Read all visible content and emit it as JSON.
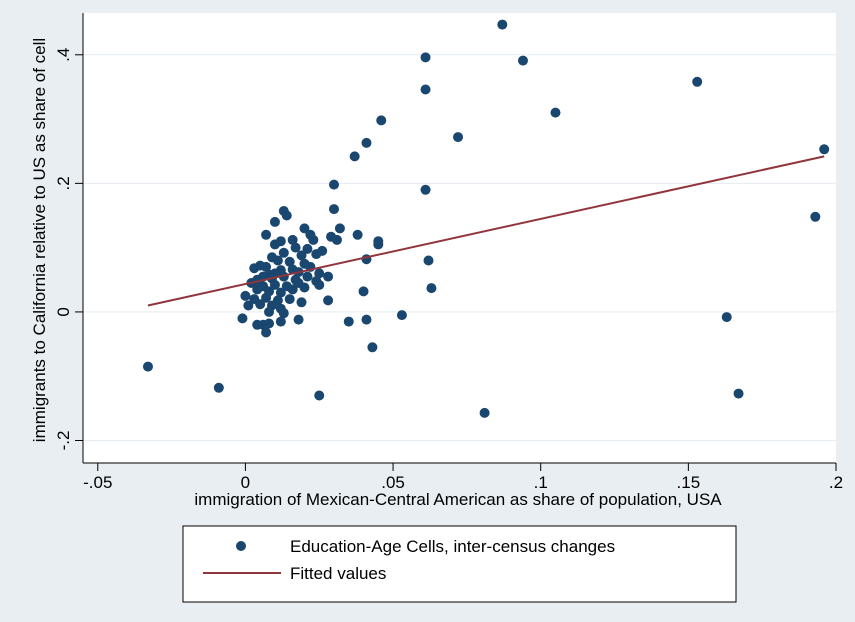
{
  "chart_data": {
    "type": "scatter",
    "title": "",
    "xlabel": "immigration of Mexican-Central American as share of population, USA",
    "ylabel": "immigrants to California relative to US as share of cell",
    "xlim": [
      -0.055,
      0.2
    ],
    "ylim": [
      -0.235,
      0.465
    ],
    "x_ticks": [
      {
        "value": -0.05,
        "label": "-.05"
      },
      {
        "value": 0,
        "label": "0"
      },
      {
        "value": 0.05,
        "label": ".05"
      },
      {
        "value": 0.1,
        "label": ".1"
      },
      {
        "value": 0.15,
        "label": ".15"
      },
      {
        "value": 0.2,
        "label": ".2"
      }
    ],
    "y_ticks": [
      {
        "value": -0.2,
        "label": "-.2"
      },
      {
        "value": 0,
        "label": "0"
      },
      {
        "value": 0.2,
        "label": ".2"
      },
      {
        "value": 0.4,
        "label": ".4"
      }
    ],
    "grid": true,
    "legend_position": "bottom",
    "colors": {
      "background": "#e9eef2",
      "plot_area": "#ffffff",
      "grid": "#e4ecf1",
      "points": "#1a476f",
      "fit_line": "#90353b"
    },
    "series": [
      {
        "name": "Education-Age Cells, inter-census changes",
        "kind": "scatter",
        "points": [
          [
            0.087,
            0.447
          ],
          [
            0.094,
            0.391
          ],
          [
            0.061,
            0.396
          ],
          [
            0.061,
            0.346
          ],
          [
            0.046,
            0.298
          ],
          [
            0.105,
            0.31
          ],
          [
            0.153,
            0.358
          ],
          [
            0.041,
            0.263
          ],
          [
            0.072,
            0.272
          ],
          [
            0.037,
            0.242
          ],
          [
            0.196,
            0.253
          ],
          [
            0.03,
            0.198
          ],
          [
            0.061,
            0.19
          ],
          [
            0.193,
            0.148
          ],
          [
            0.03,
            0.16
          ],
          [
            0.013,
            0.157
          ],
          [
            0.014,
            0.15
          ],
          [
            0.01,
            0.14
          ],
          [
            0.02,
            0.13
          ],
          [
            0.022,
            0.12
          ],
          [
            0.032,
            0.13
          ],
          [
            0.038,
            0.12
          ],
          [
            0.045,
            0.11
          ],
          [
            0.045,
            0.105
          ],
          [
            0.029,
            0.117
          ],
          [
            0.031,
            0.112
          ],
          [
            0.007,
            0.12
          ],
          [
            0.016,
            0.112
          ],
          [
            0.012,
            0.11
          ],
          [
            0.01,
            0.105
          ],
          [
            0.017,
            0.1
          ],
          [
            0.021,
            0.098
          ],
          [
            0.023,
            0.112
          ],
          [
            0.026,
            0.095
          ],
          [
            0.024,
            0.09
          ],
          [
            0.019,
            0.088
          ],
          [
            0.013,
            0.092
          ],
          [
            0.009,
            0.085
          ],
          [
            0.011,
            0.08
          ],
          [
            0.015,
            0.078
          ],
          [
            0.005,
            0.072
          ],
          [
            0.007,
            0.07
          ],
          [
            0.003,
            0.068
          ],
          [
            0.012,
            0.065
          ],
          [
            0.016,
            0.066
          ],
          [
            0.022,
            0.07
          ],
          [
            0.02,
            0.075
          ],
          [
            0.018,
            0.062
          ],
          [
            0.01,
            0.06
          ],
          [
            0.008,
            0.058
          ],
          [
            0.006,
            0.055
          ],
          [
            0.004,
            0.05
          ],
          [
            0.009,
            0.052
          ],
          [
            0.013,
            0.055
          ],
          [
            0.017,
            0.05
          ],
          [
            0.021,
            0.055
          ],
          [
            0.025,
            0.06
          ],
          [
            0.028,
            0.055
          ],
          [
            0.024,
            0.048
          ],
          [
            0.025,
            0.042
          ],
          [
            0.018,
            0.045
          ],
          [
            0.014,
            0.04
          ],
          [
            0.01,
            0.042
          ],
          [
            0.006,
            0.04
          ],
          [
            0.004,
            0.035
          ],
          [
            0.008,
            0.032
          ],
          [
            0.012,
            0.03
          ],
          [
            0.016,
            0.035
          ],
          [
            0.02,
            0.038
          ],
          [
            0.002,
            0.045
          ],
          [
            0.0,
            0.025
          ],
          [
            0.003,
            0.02
          ],
          [
            0.007,
            0.022
          ],
          [
            0.011,
            0.018
          ],
          [
            0.015,
            0.02
          ],
          [
            0.019,
            0.015
          ],
          [
            0.005,
            0.012
          ],
          [
            0.009,
            0.01
          ],
          [
            0.001,
            0.01
          ],
          [
            0.012,
            0.005
          ],
          [
            0.008,
            0.0
          ],
          [
            0.013,
            -0.002
          ],
          [
            0.018,
            -0.012
          ],
          [
            0.012,
            -0.015
          ],
          [
            0.008,
            -0.018
          ],
          [
            0.006,
            -0.02
          ],
          [
            0.004,
            -0.02
          ],
          [
            0.007,
            -0.032
          ],
          [
            -0.001,
            -0.01
          ],
          [
            0.028,
            0.018
          ],
          [
            0.04,
            0.032
          ],
          [
            0.035,
            -0.015
          ],
          [
            0.041,
            -0.012
          ],
          [
            0.041,
            0.082
          ],
          [
            0.053,
            -0.005
          ],
          [
            0.062,
            0.08
          ],
          [
            0.063,
            0.037
          ],
          [
            0.043,
            -0.055
          ],
          [
            0.025,
            -0.13
          ],
          [
            -0.033,
            -0.085
          ],
          [
            -0.009,
            -0.118
          ],
          [
            0.081,
            -0.157
          ],
          [
            0.163,
            -0.008
          ],
          [
            0.167,
            -0.127
          ]
        ]
      },
      {
        "name": "Fitted values",
        "kind": "line",
        "points": [
          [
            -0.033,
            0.01
          ],
          [
            0.196,
            0.242
          ]
        ]
      }
    ]
  }
}
